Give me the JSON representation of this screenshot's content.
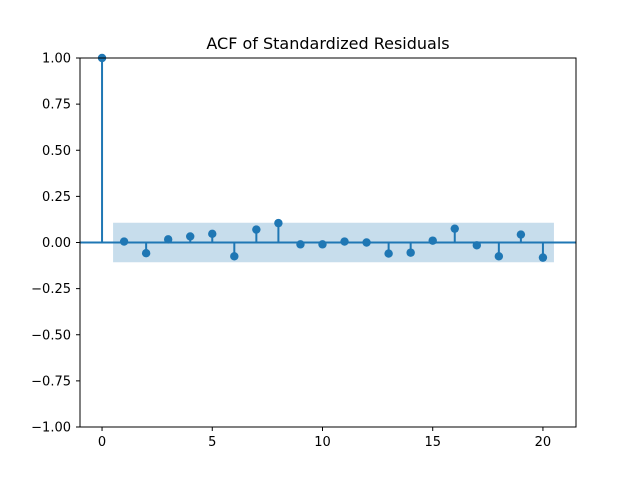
{
  "chart_data": {
    "type": "stem",
    "title": "ACF of Standardized Residuals",
    "xlabel": "",
    "ylabel": "",
    "xlim": [
      -1,
      21.5
    ],
    "ylim": [
      -1.0,
      1.0
    ],
    "x_ticks": [
      0,
      5,
      10,
      15,
      20
    ],
    "x_tick_labels": [
      "0",
      "5",
      "10",
      "15",
      "20"
    ],
    "y_ticks": [
      1.0,
      0.75,
      0.5,
      0.25,
      0.0,
      -0.25,
      -0.5,
      -0.75,
      -1.0
    ],
    "y_tick_labels": [
      "1.00",
      "0.75",
      "0.50",
      "0.25",
      "0.00",
      "−0.25",
      "−0.50",
      "−0.75",
      "−1.00"
    ],
    "grid": false,
    "lags": [
      0,
      1,
      2,
      3,
      4,
      5,
      6,
      7,
      8,
      9,
      10,
      11,
      12,
      13,
      14,
      15,
      16,
      17,
      18,
      19,
      20
    ],
    "values": [
      1.0,
      0.005,
      -0.058,
      0.017,
      0.033,
      0.047,
      -0.075,
      0.07,
      0.105,
      -0.01,
      -0.01,
      0.005,
      0.0,
      -0.06,
      -0.055,
      0.01,
      0.075,
      -0.015,
      -0.075,
      0.043,
      -0.082
    ],
    "confidence_band": {
      "x_start": 0.5,
      "x_end": 20.5,
      "lower": -0.107,
      "upper": 0.107
    },
    "colors": {
      "series": "#1f77b4",
      "band": "#1f77b4",
      "axes": "#000000"
    }
  }
}
